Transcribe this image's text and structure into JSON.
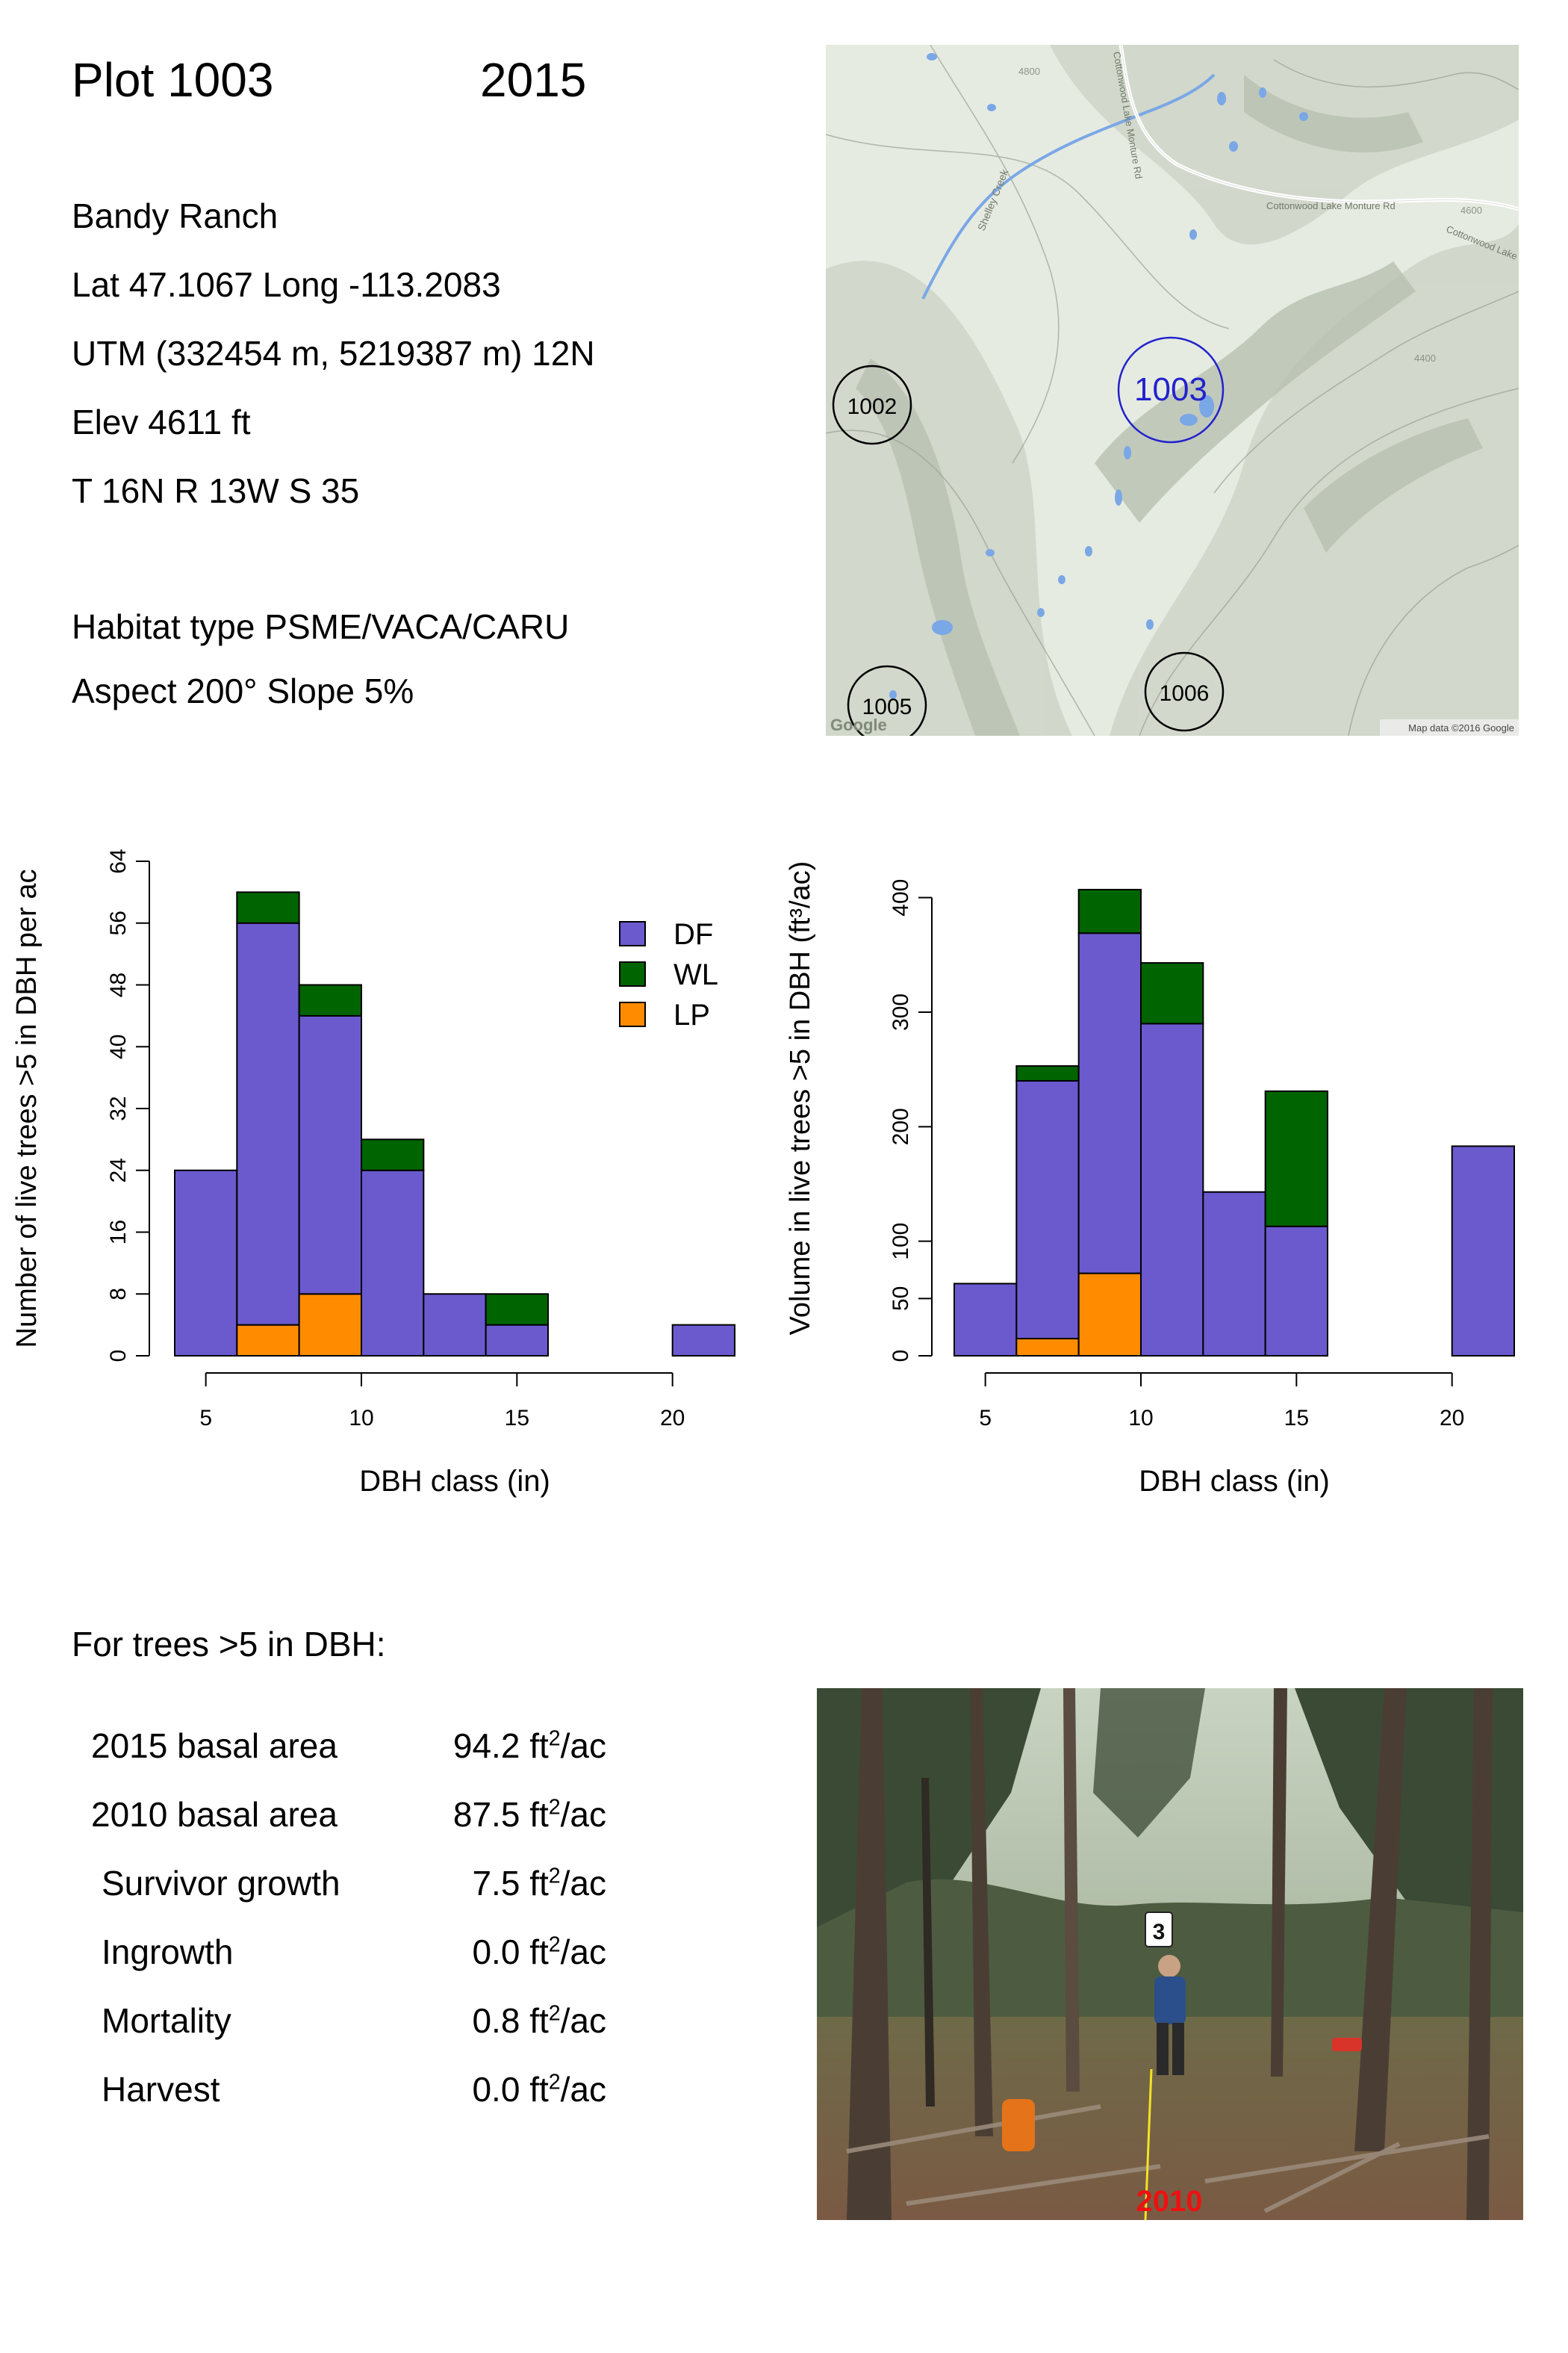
{
  "header": {
    "plot_label": "Plot 1003",
    "year": "2015"
  },
  "site": {
    "name": "Bandy Ranch",
    "latlong": "Lat 47.1067 Long -113.2083",
    "utm": "UTM (332454 m, 5219387 m)  12N",
    "elev": "Elev 4611 ft",
    "trs": "T 16N  R 13W  S 35",
    "habitat": "Habitat type PSME/VACA/CARU",
    "aspect": "Aspect 200° Slope 5%"
  },
  "map": {
    "plots": [
      "1003",
      "1002",
      "1005",
      "1006"
    ],
    "labels": {
      "creek": "Shelley Creek",
      "road1": "Cottonwood Lake Monture Rd",
      "road2": "Cottonwood Lake",
      "road3": "Cottonwood Lake Monture Rd",
      "contour_a": "4800",
      "contour_b": "4600",
      "contour_c": "4400"
    },
    "google": "Google",
    "credit": "Map data ©2016 Google",
    "colors": {
      "land": "#e6ebe2",
      "water": "#7aa7e6",
      "highlight": "#2222cc"
    }
  },
  "chart_data": [
    {
      "type": "bar",
      "stacked": true,
      "xlabel": "DBH class (in)",
      "ylabel": "Number of live trees >5 in DBH per ac",
      "bin_width": 2,
      "bin_edges": [
        4,
        6,
        8,
        10,
        12,
        14,
        16,
        18,
        20,
        22
      ],
      "x_ticks": [
        5,
        10,
        15,
        20
      ],
      "y_ticks": [
        0,
        8,
        16,
        24,
        32,
        40,
        48,
        56,
        64
      ],
      "ylim": [
        0,
        64
      ],
      "series": [
        {
          "name": "LP",
          "color": "#ff8c00",
          "values": [
            0,
            4,
            8,
            0,
            0,
            0,
            0,
            0,
            0
          ]
        },
        {
          "name": "DF",
          "color": "#6a5acd",
          "values": [
            24,
            52,
            36,
            24,
            8,
            4,
            0,
            0,
            4
          ]
        },
        {
          "name": "WL",
          "color": "#006400",
          "values": [
            0,
            4,
            4,
            4,
            0,
            4,
            0,
            0,
            0
          ]
        }
      ],
      "legend": {
        "order": [
          "DF",
          "WL",
          "LP"
        ],
        "placement": "top-right"
      }
    },
    {
      "type": "bar",
      "stacked": true,
      "xlabel": "DBH class (in)",
      "ylabel": "Volume in live trees >5 in DBH (ft³/ac)",
      "bin_width": 2,
      "bin_edges": [
        4,
        6,
        8,
        10,
        12,
        14,
        16,
        18,
        20,
        22
      ],
      "x_ticks": [
        5,
        10,
        15,
        20
      ],
      "y_ticks": [
        0,
        50,
        100,
        200,
        300,
        400
      ],
      "ylim": [
        0,
        450
      ],
      "series": [
        {
          "name": "LP",
          "color": "#ff8c00",
          "values": [
            0,
            15,
            72,
            0,
            0,
            0,
            0,
            0,
            0
          ]
        },
        {
          "name": "DF",
          "color": "#6a5acd",
          "values": [
            63,
            225,
            297,
            290,
            143,
            113,
            0,
            0,
            183
          ]
        },
        {
          "name": "WL",
          "color": "#006400",
          "values": [
            0,
            13,
            38,
            53,
            0,
            118,
            0,
            0,
            0
          ]
        }
      ]
    }
  ],
  "summary": {
    "heading": "For trees >5 in DBH:",
    "rows": [
      {
        "label": "2015 basal area",
        "value": "94.2 ft",
        "exp": "2",
        "unit": "/ac"
      },
      {
        "label": "2010 basal area",
        "value": "87.5 ft",
        "exp": "2",
        "unit": "/ac"
      },
      {
        "label": "Survivor growth",
        "value": "7.5 ft",
        "exp": "2",
        "unit": "/ac"
      },
      {
        "label": "Ingrowth",
        "value": "0.0 ft",
        "exp": "2",
        "unit": "/ac"
      },
      {
        "label": "Mortality",
        "value": "0.8 ft",
        "exp": "2",
        "unit": "/ac"
      },
      {
        "label": "Harvest",
        "value": "0.0 ft",
        "exp": "2",
        "unit": "/ac"
      }
    ]
  },
  "photo": {
    "year_label": "2010",
    "card_number": "3",
    "colors": {
      "sky": "#c9d3c2",
      "forest": "#3b4a34",
      "ground": "#7a5a44",
      "label": "#ee1111"
    }
  }
}
